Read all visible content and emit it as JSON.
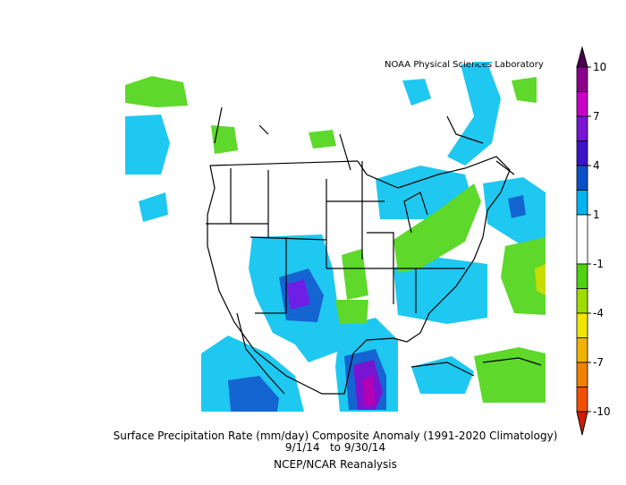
{
  "source": "NOAA Physical Sciences Laboratory",
  "title": "Surface Precipitation Rate (mm/day) Composite Anomaly (1991-2020 Climatology)",
  "dates": "9/1/14   to 9/30/14",
  "dataset": "NCEP/NCAR Reanalysis",
  "colorbar": {
    "ticks": [
      10,
      7,
      4,
      1,
      -1,
      -4,
      -7,
      -10
    ],
    "over_color": "#4b0055",
    "under_color": "#d21e00",
    "interval_colors": [
      [
        "#8c008c",
        "#c800c8"
      ],
      [
        "#7814d2",
        "#3c14c8"
      ],
      [
        "#0a50c8",
        "#00b4f0"
      ],
      [
        "#ffffff"
      ],
      [
        "#50d214",
        "#a0dc00"
      ],
      [
        "#f0e600",
        "#f0b400"
      ],
      [
        "#f08200",
        "#f05000"
      ]
    ]
  }
}
